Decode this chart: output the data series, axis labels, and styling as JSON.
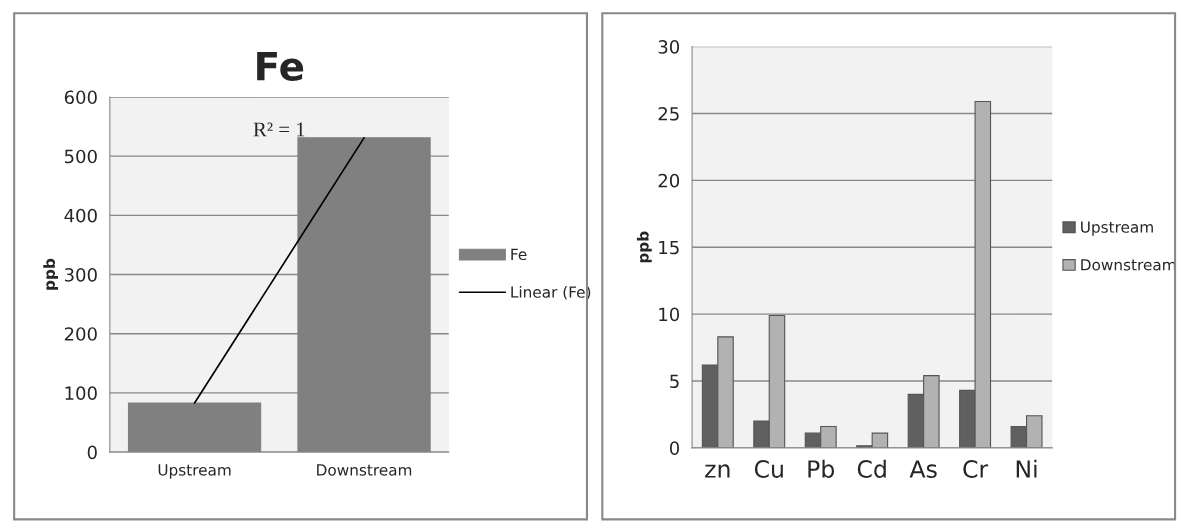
{
  "chart_data": [
    {
      "type": "bar",
      "title": "Fe",
      "ylabel": "ppb",
      "categories": [
        "Upstream",
        "Downstream"
      ],
      "series": [
        {
          "name": "Fe",
          "color": "#808080",
          "values": [
            83,
            531
          ]
        },
        {
          "type": "line",
          "name": "Linear (Fe)",
          "color": "#000000",
          "values": [
            83,
            531
          ]
        }
      ],
      "ylim": [
        0,
        600
      ],
      "yticks": [
        0,
        100,
        200,
        300,
        400,
        500,
        600
      ],
      "grid": "y",
      "legend": "right",
      "marker": "none",
      "annotations": [
        "R² = 1"
      ]
    },
    {
      "type": "bar",
      "ylabel": "ppb",
      "categories": [
        "zn",
        "Cu",
        "Pb",
        "Cd",
        "As",
        "Cr",
        "Ni"
      ],
      "series": [
        {
          "name": "Upstream",
          "color": "#606060",
          "values": [
            6.2,
            2.0,
            1.1,
            0.15,
            4.0,
            4.3,
            1.6
          ]
        },
        {
          "name": "Downstream",
          "color": "#b2b2b2",
          "values": [
            8.3,
            9.9,
            1.6,
            1.1,
            5.4,
            25.9,
            2.4
          ]
        }
      ],
      "ylim": [
        0,
        30
      ],
      "yticks": [
        0,
        5,
        10,
        15,
        20,
        25,
        30
      ],
      "grid": "y",
      "legend": "right"
    }
  ]
}
